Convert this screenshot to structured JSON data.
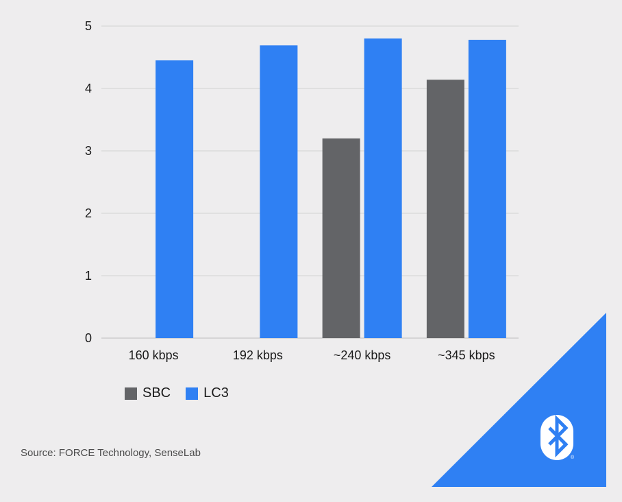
{
  "chart_data": {
    "type": "bar",
    "categories": [
      "160 kbps",
      "192 kbps",
      "~240 kbps",
      "~345 kbps"
    ],
    "series": [
      {
        "name": "SBC",
        "color": "#636467",
        "values": [
          null,
          null,
          3.2,
          4.14
        ]
      },
      {
        "name": "LC3",
        "color": "#2f80f3",
        "values": [
          4.45,
          4.69,
          4.8,
          4.78
        ]
      }
    ],
    "yticks": [
      "0",
      "1",
      "2",
      "3",
      "4",
      "5"
    ],
    "ylim": [
      0,
      5
    ],
    "title": "",
    "xlabel": "",
    "ylabel": "",
    "grid": true,
    "legend_position": "bottom-left"
  },
  "source": "Source: FORCE Technology, SenseLab",
  "logo": {
    "name": "bluetooth",
    "mark_color": "#ffffff",
    "background_color": "#2f80f3"
  }
}
